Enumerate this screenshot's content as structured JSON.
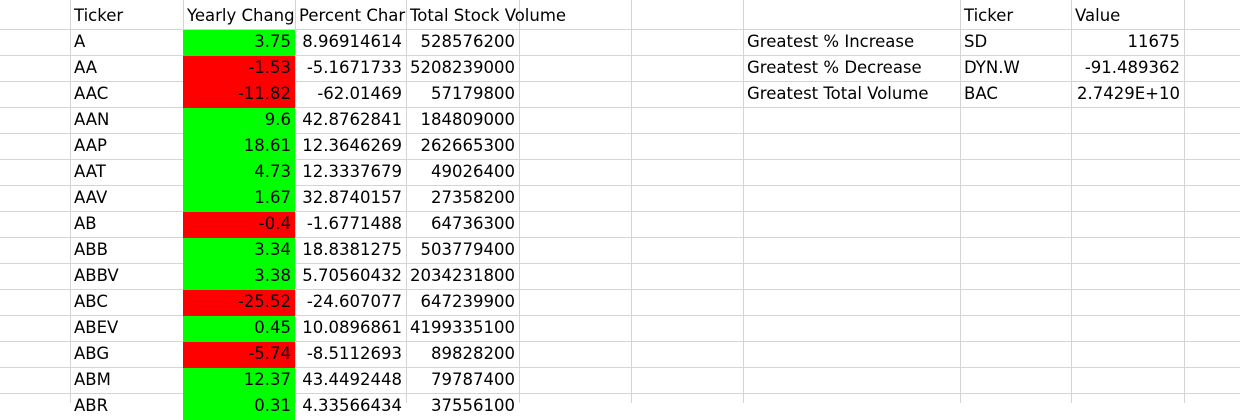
{
  "main_table": {
    "headers": [
      "Ticker",
      "Yearly Chang",
      "Percent Char",
      "Total Stock Volume"
    ],
    "rows": [
      {
        "ticker": "A",
        "yearly_change": "3.75",
        "percent_change": "8.96914614",
        "total_volume": "528576200",
        "status": "positive"
      },
      {
        "ticker": "AA",
        "yearly_change": "-1.53",
        "percent_change": "-5.1671733",
        "total_volume": "5208239000",
        "status": "negative"
      },
      {
        "ticker": "AAC",
        "yearly_change": "-11.82",
        "percent_change": "-62.01469",
        "total_volume": "57179800",
        "status": "negative"
      },
      {
        "ticker": "AAN",
        "yearly_change": "9.6",
        "percent_change": "42.8762841",
        "total_volume": "184809000",
        "status": "positive"
      },
      {
        "ticker": "AAP",
        "yearly_change": "18.61",
        "percent_change": "12.3646269",
        "total_volume": "262665300",
        "status": "positive"
      },
      {
        "ticker": "AAT",
        "yearly_change": "4.73",
        "percent_change": "12.3337679",
        "total_volume": "49026400",
        "status": "positive"
      },
      {
        "ticker": "AAV",
        "yearly_change": "1.67",
        "percent_change": "32.8740157",
        "total_volume": "27358200",
        "status": "positive"
      },
      {
        "ticker": "AB",
        "yearly_change": "-0.4",
        "percent_change": "-1.6771488",
        "total_volume": "64736300",
        "status": "negative"
      },
      {
        "ticker": "ABB",
        "yearly_change": "3.34",
        "percent_change": "18.8381275",
        "total_volume": "503779400",
        "status": "positive"
      },
      {
        "ticker": "ABBV",
        "yearly_change": "3.38",
        "percent_change": "5.70560432",
        "total_volume": "2034231800",
        "status": "positive"
      },
      {
        "ticker": "ABC",
        "yearly_change": "-25.52",
        "percent_change": "-24.607077",
        "total_volume": "647239900",
        "status": "negative"
      },
      {
        "ticker": "ABEV",
        "yearly_change": "0.45",
        "percent_change": "10.0896861",
        "total_volume": "4199335100",
        "status": "positive"
      },
      {
        "ticker": "ABG",
        "yearly_change": "-5.74",
        "percent_change": "-8.5112693",
        "total_volume": "89828200",
        "status": "negative"
      },
      {
        "ticker": "ABM",
        "yearly_change": "12.37",
        "percent_change": "43.4492448",
        "total_volume": "79787400",
        "status": "positive"
      },
      {
        "ticker": "ABR",
        "yearly_change": "0.31",
        "percent_change": "4.33566434",
        "total_volume": "37556100",
        "status": "positive"
      }
    ]
  },
  "summary_table": {
    "headers": [
      "Ticker",
      "Value"
    ],
    "rows": [
      {
        "label": "Greatest % Increase",
        "ticker": "SD",
        "value": "11675"
      },
      {
        "label": "Greatest % Decrease",
        "ticker": "DYN.W",
        "value": "-91.489362"
      },
      {
        "label": "Greatest Total Volume",
        "ticker": "BAC",
        "value": "2.7429E+10"
      }
    ]
  },
  "colors": {
    "positive_fill": "#00ff00",
    "negative_fill": "#ff0000",
    "gridline": "#d4d4d4"
  }
}
